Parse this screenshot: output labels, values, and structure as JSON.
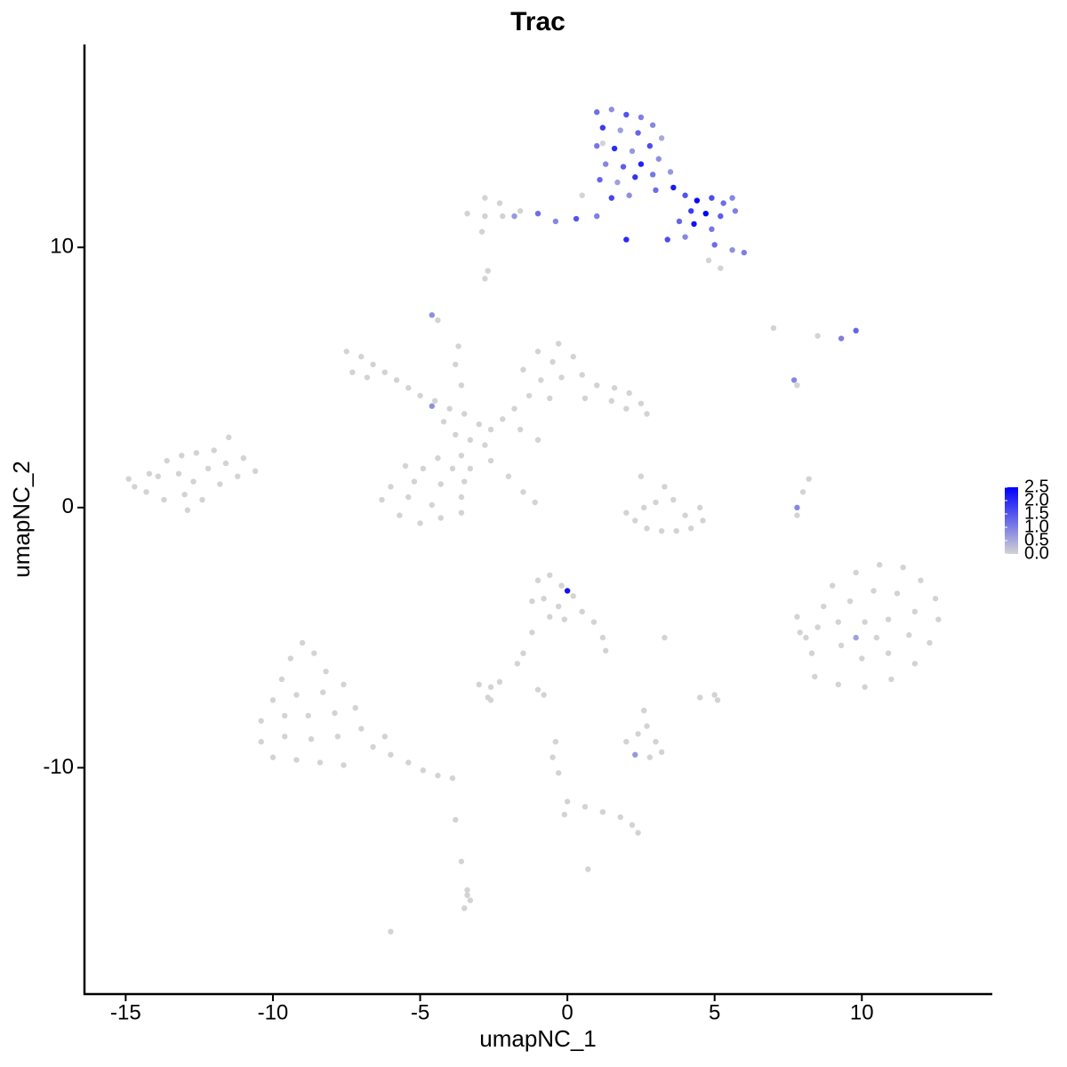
{
  "chart_data": {
    "type": "scatter",
    "title": "Trac",
    "x_label": "umapNC_1",
    "y_label": "umapNC_2",
    "xlim": [
      -16.4,
      14.4
    ],
    "ylim": [
      -18.7,
      17.8
    ],
    "xticks": [
      -15,
      -10,
      -5,
      0,
      5,
      10
    ],
    "yticks": [
      -10,
      0,
      10
    ],
    "color_low": "#d3d3d3",
    "color_high": "#0000ff",
    "colorbar_lim": [
      0,
      2.5
    ],
    "colorbar_ticks": [
      {
        "value": 0,
        "label": "0.0"
      },
      0.5,
      {
        "value": 1,
        "label": "1.0"
      },
      1.5,
      {
        "value": 2,
        "label": "2.0"
      },
      2.5
    ],
    "points": [
      [
        1.0,
        15.2,
        1.2
      ],
      [
        1.5,
        15.3,
        0.8
      ],
      [
        2.0,
        15.1,
        1.5
      ],
      [
        2.5,
        15.0,
        1.0
      ],
      [
        1.2,
        14.6,
        1.8
      ],
      [
        1.8,
        14.5,
        0.6
      ],
      [
        2.4,
        14.4,
        1.3
      ],
      [
        2.9,
        14.7,
        0.9
      ],
      [
        1.0,
        13.9,
        1.1
      ],
      [
        1.6,
        13.8,
        2.0
      ],
      [
        2.2,
        13.7,
        0.7
      ],
      [
        2.8,
        13.9,
        1.6
      ],
      [
        3.2,
        14.2,
        0.5
      ],
      [
        1.3,
        13.2,
        0.9
      ],
      [
        1.9,
        13.1,
        1.4
      ],
      [
        2.5,
        13.2,
        2.1
      ],
      [
        3.1,
        13.4,
        0.8
      ],
      [
        1.1,
        12.6,
        1.3
      ],
      [
        1.7,
        12.5,
        0.6
      ],
      [
        2.3,
        12.7,
        1.9
      ],
      [
        2.9,
        12.8,
        1.1
      ],
      [
        3.5,
        12.9,
        0.7
      ],
      [
        1.5,
        11.9,
        1.7
      ],
      [
        2.1,
        12.0,
        0.8
      ],
      [
        3.0,
        12.2,
        1.2
      ],
      [
        3.6,
        12.3,
        2.2
      ],
      [
        4.0,
        12.0,
        1.5
      ],
      [
        4.4,
        11.8,
        2.4
      ],
      [
        4.9,
        11.9,
        1.6
      ],
      [
        5.3,
        11.7,
        1.2
      ],
      [
        5.6,
        11.9,
        0.9
      ],
      [
        4.2,
        11.4,
        1.8
      ],
      [
        4.7,
        11.3,
        2.5
      ],
      [
        5.2,
        11.2,
        1.4
      ],
      [
        5.7,
        11.4,
        1.0
      ],
      [
        3.8,
        11.0,
        1.3
      ],
      [
        4.3,
        10.9,
        2.3
      ],
      [
        4.9,
        10.7,
        1.1
      ],
      [
        3.4,
        10.3,
        1.6
      ],
      [
        4.0,
        10.4,
        0.9
      ],
      [
        5.0,
        10.1,
        1.2
      ],
      [
        5.6,
        9.9,
        0.8
      ],
      [
        6.0,
        9.8,
        1.0
      ],
      [
        4.8,
        9.5,
        0
      ],
      [
        5.2,
        9.2,
        0
      ],
      [
        2.0,
        10.3,
        2.0
      ],
      [
        1.0,
        11.2,
        1.0
      ],
      [
        0.3,
        11.1,
        1.5
      ],
      [
        -0.4,
        11.0,
        0.9
      ],
      [
        -1.0,
        11.3,
        1.2
      ],
      [
        -1.8,
        11.2,
        0.7
      ],
      [
        0.5,
        12.0,
        0
      ],
      [
        1.2,
        14.0,
        0
      ],
      [
        -2.8,
        11.9,
        0
      ],
      [
        -2.3,
        11.7,
        0
      ],
      [
        -1.6,
        11.4,
        0
      ],
      [
        -3.4,
        11.3,
        0
      ],
      [
        -2.8,
        11.2,
        0
      ],
      [
        -2.2,
        11.2,
        0
      ],
      [
        -2.9,
        10.6,
        0
      ],
      [
        -2.7,
        9.1,
        0
      ],
      [
        -2.8,
        8.8,
        0
      ],
      [
        -4.6,
        7.4,
        0.8
      ],
      [
        -4.4,
        7.2,
        0
      ],
      [
        7.0,
        6.9,
        0
      ],
      [
        8.5,
        6.6,
        0
      ],
      [
        9.3,
        6.5,
        1.0
      ],
      [
        9.8,
        6.8,
        1.3
      ],
      [
        7.7,
        4.9,
        0.9
      ],
      [
        7.8,
        4.7,
        0
      ],
      [
        -7.5,
        6.0,
        0
      ],
      [
        -7.0,
        5.8,
        0
      ],
      [
        -6.6,
        5.5,
        0
      ],
      [
        -7.3,
        5.2,
        0
      ],
      [
        -6.8,
        5.0,
        0
      ],
      [
        -6.2,
        5.2,
        0
      ],
      [
        -5.8,
        4.9,
        0
      ],
      [
        -5.4,
        4.6,
        0
      ],
      [
        -5.0,
        4.3,
        0
      ],
      [
        -4.5,
        4.1,
        0
      ],
      [
        -4.0,
        3.8,
        0
      ],
      [
        -3.5,
        3.6,
        0
      ],
      [
        -3.0,
        3.2,
        0
      ],
      [
        -2.6,
        3.0,
        0
      ],
      [
        -3.3,
        2.6,
        0
      ],
      [
        -2.8,
        2.4,
        0
      ],
      [
        -4.2,
        3.3,
        0
      ],
      [
        -3.8,
        2.8,
        0
      ],
      [
        -2.2,
        3.4,
        0
      ],
      [
        -4.6,
        3.9,
        0.8
      ],
      [
        -3.6,
        4.7,
        0
      ],
      [
        -3.8,
        5.5,
        0
      ],
      [
        -3.7,
        6.2,
        0
      ],
      [
        -1.8,
        3.8,
        0
      ],
      [
        -1.3,
        4.3,
        0
      ],
      [
        -0.9,
        4.9,
        0
      ],
      [
        -1.5,
        5.3,
        0
      ],
      [
        -0.5,
        5.6,
        0
      ],
      [
        -1.0,
        6.0,
        0
      ],
      [
        -0.3,
        6.3,
        0
      ],
      [
        0.2,
        5.8,
        0
      ],
      [
        -0.2,
        5.0,
        0
      ],
      [
        0.5,
        5.1,
        0
      ],
      [
        1.0,
        4.7,
        0
      ],
      [
        1.6,
        4.6,
        0
      ],
      [
        2.1,
        4.4,
        0
      ],
      [
        2.5,
        4.0,
        0
      ],
      [
        2.0,
        3.8,
        0
      ],
      [
        2.7,
        3.6,
        0
      ],
      [
        1.5,
        4.1,
        0
      ],
      [
        0.6,
        4.2,
        0
      ],
      [
        -0.6,
        4.2,
        0
      ],
      [
        -1.6,
        3.0,
        0
      ],
      [
        -1.0,
        2.6,
        0
      ],
      [
        -3.6,
        2.0,
        0
      ],
      [
        -3.9,
        1.5,
        0
      ],
      [
        -3.5,
        1.0,
        0
      ],
      [
        -4.3,
        0.9,
        0
      ],
      [
        -5.2,
        1.0,
        0
      ],
      [
        -6.0,
        0.8,
        0
      ],
      [
        -6.3,
        0.3,
        0
      ],
      [
        -5.7,
        -0.3,
        0
      ],
      [
        -5.0,
        -0.6,
        0
      ],
      [
        -4.3,
        -0.4,
        0
      ],
      [
        -3.6,
        -0.2,
        0
      ],
      [
        -3.6,
        0.4,
        0
      ],
      [
        -4.6,
        0.1,
        0
      ],
      [
        -5.4,
        0.4,
        0
      ],
      [
        -4.9,
        1.5,
        0
      ],
      [
        -4.4,
        1.9,
        0
      ],
      [
        -5.5,
        1.6,
        0
      ],
      [
        -3.3,
        1.5,
        0
      ],
      [
        -2.6,
        1.8,
        0
      ],
      [
        -2.0,
        1.2,
        0
      ],
      [
        -1.5,
        0.6,
        0
      ],
      [
        -1.1,
        0.2,
        0
      ],
      [
        -14.7,
        0.8,
        0
      ],
      [
        -14.2,
        1.3,
        0
      ],
      [
        -13.6,
        1.8,
        0
      ],
      [
        -13.1,
        2.0,
        0
      ],
      [
        -12.6,
        2.1,
        0
      ],
      [
        -12.0,
        2.2,
        0
      ],
      [
        -11.5,
        2.7,
        0
      ],
      [
        -14.3,
        0.6,
        0
      ],
      [
        -13.7,
        0.3,
        0
      ],
      [
        -13.0,
        0.5,
        0
      ],
      [
        -12.4,
        0.3,
        0
      ],
      [
        -11.8,
        0.9,
        0
      ],
      [
        -11.2,
        1.2,
        0
      ],
      [
        -10.6,
        1.4,
        0
      ],
      [
        -13.9,
        1.2,
        0
      ],
      [
        -13.2,
        1.3,
        0
      ],
      [
        -12.7,
        1.0,
        0
      ],
      [
        -12.2,
        1.5,
        0
      ],
      [
        -11.6,
        1.7,
        0
      ],
      [
        -12.9,
        -0.1,
        0
      ],
      [
        -14.9,
        1.1,
        0
      ],
      [
        -11.0,
        1.9,
        0
      ],
      [
        2.0,
        -0.2,
        0
      ],
      [
        2.3,
        -0.5,
        0
      ],
      [
        2.7,
        -0.8,
        0
      ],
      [
        3.2,
        -0.9,
        0
      ],
      [
        3.7,
        -0.9,
        0
      ],
      [
        4.2,
        -0.8,
        0
      ],
      [
        4.6,
        -0.5,
        0
      ],
      [
        4.5,
        0.0,
        0
      ],
      [
        3.3,
        0.8,
        0
      ],
      [
        3.0,
        0.2,
        0
      ],
      [
        3.6,
        0.3,
        0
      ],
      [
        2.6,
        0.0,
        0
      ],
      [
        2.5,
        1.2,
        0
      ],
      [
        4.0,
        -0.3,
        0
      ],
      [
        7.8,
        0.0,
        0.9
      ],
      [
        8.0,
        0.6,
        0
      ],
      [
        8.2,
        1.1,
        0
      ],
      [
        7.8,
        -0.3,
        0
      ],
      [
        9.0,
        -3.0,
        0
      ],
      [
        9.8,
        -2.5,
        0
      ],
      [
        10.6,
        -2.2,
        0
      ],
      [
        11.4,
        -2.3,
        0
      ],
      [
        12.0,
        -2.8,
        0
      ],
      [
        12.5,
        -3.5,
        0
      ],
      [
        12.6,
        -4.3,
        0
      ],
      [
        12.3,
        -5.2,
        0
      ],
      [
        11.8,
        -6.0,
        0
      ],
      [
        11.0,
        -6.6,
        0
      ],
      [
        10.1,
        -6.9,
        0
      ],
      [
        9.2,
        -6.8,
        0
      ],
      [
        8.4,
        -6.5,
        0
      ],
      [
        8.3,
        -5.6,
        0
      ],
      [
        8.5,
        -4.6,
        0
      ],
      [
        8.7,
        -3.8,
        0
      ],
      [
        9.6,
        -3.6,
        0
      ],
      [
        10.4,
        -3.2,
        0
      ],
      [
        11.2,
        -3.3,
        0
      ],
      [
        11.8,
        -4.0,
        0
      ],
      [
        11.6,
        -4.9,
        0
      ],
      [
        10.9,
        -5.6,
        0
      ],
      [
        10.0,
        -5.8,
        0
      ],
      [
        9.3,
        -5.3,
        0
      ],
      [
        9.2,
        -4.4,
        0
      ],
      [
        10.1,
        -4.4,
        0
      ],
      [
        10.9,
        -4.3,
        0
      ],
      [
        10.5,
        -5.0,
        0
      ],
      [
        9.8,
        -5.0,
        0.6
      ],
      [
        7.8,
        -4.2,
        0
      ],
      [
        7.9,
        -4.8,
        0
      ],
      [
        8.1,
        -5.0,
        0
      ],
      [
        -9.0,
        -5.2,
        0
      ],
      [
        -9.4,
        -5.8,
        0
      ],
      [
        -9.7,
        -6.6,
        0
      ],
      [
        -8.6,
        -5.6,
        0
      ],
      [
        -8.2,
        -6.3,
        0
      ],
      [
        -10.0,
        -7.4,
        0
      ],
      [
        -9.2,
        -7.2,
        0
      ],
      [
        -8.3,
        -7.1,
        0
      ],
      [
        -7.6,
        -6.8,
        0
      ],
      [
        -10.4,
        -8.2,
        0
      ],
      [
        -9.6,
        -8.0,
        0
      ],
      [
        -8.8,
        -8.0,
        0
      ],
      [
        -7.9,
        -7.9,
        0
      ],
      [
        -7.2,
        -7.7,
        0
      ],
      [
        -10.4,
        -9.0,
        0
      ],
      [
        -9.6,
        -8.8,
        0
      ],
      [
        -8.7,
        -8.9,
        0
      ],
      [
        -7.8,
        -8.8,
        0
      ],
      [
        -7.0,
        -8.5,
        0
      ],
      [
        -10.0,
        -9.6,
        0
      ],
      [
        -9.2,
        -9.7,
        0
      ],
      [
        -8.4,
        -9.8,
        0
      ],
      [
        -7.6,
        -9.9,
        0
      ],
      [
        -6.6,
        -9.2,
        0
      ],
      [
        -6.0,
        -9.5,
        0
      ],
      [
        -5.4,
        -9.8,
        0
      ],
      [
        -4.9,
        -10.1,
        0
      ],
      [
        -4.4,
        -10.3,
        0
      ],
      [
        -3.9,
        -10.4,
        0
      ],
      [
        -6.2,
        -8.8,
        0
      ],
      [
        -1.0,
        -2.8,
        0
      ],
      [
        -0.6,
        -2.6,
        0
      ],
      [
        -0.2,
        -3.0,
        0
      ],
      [
        -1.2,
        -3.6,
        0
      ],
      [
        -0.8,
        -3.5,
        0
      ],
      [
        -0.3,
        -3.8,
        0
      ],
      [
        0.2,
        -3.4,
        0
      ],
      [
        0.5,
        -4.0,
        0
      ],
      [
        0.9,
        -4.4,
        0
      ],
      [
        1.2,
        -5.0,
        0
      ],
      [
        1.3,
        -5.5,
        0
      ],
      [
        -0.6,
        -4.2,
        0
      ],
      [
        -0.1,
        -4.3,
        0
      ],
      [
        0.0,
        -3.2,
        2.3
      ],
      [
        -1.2,
        -4.8,
        0
      ],
      [
        -1.5,
        -5.6,
        0
      ],
      [
        -1.7,
        -6.0,
        0
      ],
      [
        -3.0,
        -6.8,
        0
      ],
      [
        -2.6,
        -6.9,
        0
      ],
      [
        -2.3,
        -6.7,
        0
      ],
      [
        -2.7,
        -7.3,
        0
      ],
      [
        -2.6,
        -7.4,
        0
      ],
      [
        -1.0,
        -7.0,
        0
      ],
      [
        -0.8,
        -7.2,
        0
      ],
      [
        -0.4,
        -9.0,
        0
      ],
      [
        -0.5,
        -9.6,
        0
      ],
      [
        -0.3,
        -10.2,
        0
      ],
      [
        0.0,
        -11.3,
        0
      ],
      [
        -0.1,
        -11.8,
        0
      ],
      [
        0.6,
        -11.5,
        0
      ],
      [
        1.2,
        -11.7,
        0
      ],
      [
        1.8,
        -11.9,
        0
      ],
      [
        2.2,
        -12.2,
        0
      ],
      [
        2.4,
        -12.5,
        0
      ],
      [
        2.0,
        -9.0,
        0
      ],
      [
        2.4,
        -8.7,
        0
      ],
      [
        2.7,
        -8.4,
        0
      ],
      [
        3.0,
        -9.0,
        0
      ],
      [
        2.3,
        -9.5,
        0.7
      ],
      [
        2.8,
        -9.6,
        0
      ],
      [
        3.2,
        -9.4,
        0
      ],
      [
        2.6,
        -7.8,
        0
      ],
      [
        5.0,
        -7.2,
        0
      ],
      [
        5.1,
        -7.4,
        0
      ],
      [
        4.5,
        -7.3,
        0
      ],
      [
        3.3,
        -5.0,
        0
      ],
      [
        -3.8,
        -12.0,
        0
      ],
      [
        -3.6,
        -13.6,
        0
      ],
      [
        -3.4,
        -14.7,
        0
      ],
      [
        -3.3,
        -15.1,
        0
      ],
      [
        -3.5,
        -15.4,
        0
      ],
      [
        -3.4,
        -14.9,
        0
      ],
      [
        -6.0,
        -16.3,
        0
      ],
      [
        0.7,
        -13.9,
        0
      ]
    ]
  }
}
